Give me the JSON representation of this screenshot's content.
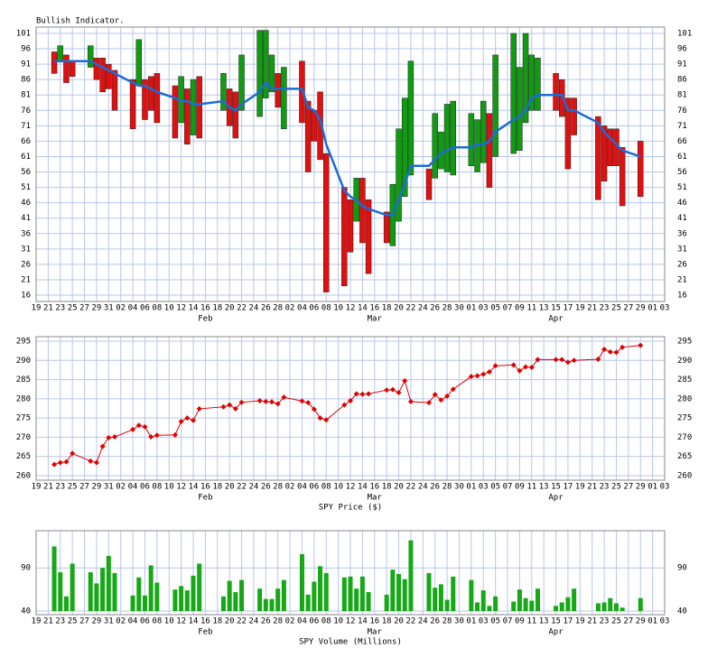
{
  "x_axis": {
    "xlim": [
      "01-19",
      "05-03"
    ],
    "xticks": [
      {
        "value": "01-19",
        "label": "19"
      },
      {
        "value": "01-21",
        "label": "21"
      },
      {
        "value": "01-23",
        "label": "23"
      },
      {
        "value": "01-25",
        "label": "25"
      },
      {
        "value": "01-27",
        "label": "27"
      },
      {
        "value": "01-29",
        "label": "29"
      },
      {
        "value": "01-31",
        "label": "31"
      },
      {
        "value": "02-02",
        "label": "02"
      },
      {
        "value": "02-04",
        "label": "04"
      },
      {
        "value": "02-06",
        "label": "06"
      },
      {
        "value": "02-08",
        "label": "08"
      },
      {
        "value": "02-10",
        "label": "10"
      },
      {
        "value": "02-12",
        "label": "12"
      },
      {
        "value": "02-14",
        "label": "14"
      },
      {
        "value": "02-16",
        "label": "16"
      },
      {
        "value": "02-18",
        "label": "18"
      },
      {
        "value": "02-20",
        "label": "20"
      },
      {
        "value": "02-22",
        "label": "22"
      },
      {
        "value": "02-24",
        "label": "24"
      },
      {
        "value": "02-26",
        "label": "26"
      },
      {
        "value": "02-28",
        "label": "28"
      },
      {
        "value": "03-02",
        "label": "02"
      },
      {
        "value": "03-04",
        "label": "04"
      },
      {
        "value": "03-06",
        "label": "06"
      },
      {
        "value": "03-08",
        "label": "08"
      },
      {
        "value": "03-10",
        "label": "10"
      },
      {
        "value": "03-12",
        "label": "12"
      },
      {
        "value": "03-14",
        "label": "14"
      },
      {
        "value": "03-16",
        "label": "16"
      },
      {
        "value": "03-18",
        "label": "18"
      },
      {
        "value": "03-20",
        "label": "20"
      },
      {
        "value": "03-22",
        "label": "22"
      },
      {
        "value": "03-24",
        "label": "24"
      },
      {
        "value": "03-26",
        "label": "26"
      },
      {
        "value": "03-28",
        "label": "28"
      },
      {
        "value": "03-30",
        "label": "30"
      },
      {
        "value": "04-01",
        "label": "01"
      },
      {
        "value": "04-03",
        "label": "03"
      },
      {
        "value": "04-05",
        "label": "05"
      },
      {
        "value": "04-07",
        "label": "07"
      },
      {
        "value": "04-09",
        "label": "09"
      },
      {
        "value": "04-11",
        "label": "11"
      },
      {
        "value": "04-13",
        "label": "13"
      },
      {
        "value": "04-15",
        "label": "15"
      },
      {
        "value": "04-17",
        "label": "17"
      },
      {
        "value": "04-19",
        "label": "19"
      },
      {
        "value": "04-21",
        "label": "21"
      },
      {
        "value": "04-23",
        "label": "23"
      },
      {
        "value": "04-25",
        "label": "25"
      },
      {
        "value": "04-27",
        "label": "27"
      },
      {
        "value": "04-29",
        "label": "29"
      },
      {
        "value": "05-01",
        "label": "01"
      },
      {
        "value": "05-03",
        "label": "03"
      }
    ],
    "month_labels": [
      {
        "value": "02-16",
        "label": "Feb"
      },
      {
        "value": "03-16",
        "label": "Mar"
      },
      {
        "value": "04-15",
        "label": "Apr"
      }
    ],
    "dates": [
      "01-22",
      "01-23",
      "01-24",
      "01-25",
      "01-28",
      "01-29",
      "01-30",
      "01-31",
      "02-01",
      "02-04",
      "02-05",
      "02-06",
      "02-07",
      "02-08",
      "02-11",
      "02-12",
      "02-13",
      "02-14",
      "02-15",
      "02-19",
      "02-20",
      "02-21",
      "02-22",
      "02-25",
      "02-26",
      "02-27",
      "02-28",
      "03-01",
      "03-04",
      "03-05",
      "03-06",
      "03-07",
      "03-08",
      "03-11",
      "03-12",
      "03-13",
      "03-14",
      "03-15",
      "03-18",
      "03-19",
      "03-20",
      "03-21",
      "03-22",
      "03-25",
      "03-26",
      "03-27",
      "03-28",
      "03-29",
      "04-01",
      "04-02",
      "04-03",
      "04-04",
      "04-05",
      "04-08",
      "04-09",
      "04-10",
      "04-11",
      "04-12",
      "04-15",
      "04-16",
      "04-17",
      "04-18",
      "04-22",
      "04-23",
      "04-24",
      "04-25",
      "04-26",
      "04-29"
    ]
  },
  "chart_data": [
    {
      "type": "range_bar",
      "title": "Bullish Indicator.",
      "grid": true,
      "ylim": [
        16,
        101
      ],
      "yticks": [
        16,
        21,
        26,
        31,
        36,
        41,
        46,
        51,
        56,
        61,
        66,
        71,
        76,
        81,
        86,
        91,
        96,
        101
      ],
      "up_color": "#109c10",
      "down_color": "#e01010",
      "open": [
        95,
        92,
        94,
        92,
        90,
        93,
        93,
        91,
        89,
        86,
        84,
        86,
        87,
        88,
        84,
        72,
        83,
        68,
        87,
        76,
        83,
        82,
        76,
        74,
        80,
        82,
        88,
        70,
        92,
        79,
        76,
        82,
        62,
        51,
        47,
        40,
        54,
        47,
        43,
        32,
        40,
        48,
        55,
        57,
        54,
        57,
        56,
        55,
        58,
        56,
        59,
        75,
        61,
        62,
        63,
        72,
        76,
        76,
        88,
        86,
        80,
        80,
        74,
        71,
        70,
        70,
        64,
        66
      ],
      "close": [
        88,
        97,
        85,
        87,
        97,
        86,
        82,
        83,
        76,
        70,
        99,
        73,
        76,
        72,
        67,
        87,
        65,
        86,
        67,
        88,
        71,
        67,
        94,
        102,
        102,
        94,
        77,
        90,
        72,
        56,
        66,
        60,
        17,
        19,
        30,
        54,
        33,
        23,
        33,
        52,
        70,
        80,
        92,
        47,
        75,
        69,
        78,
        79,
        75,
        73,
        79,
        51,
        94,
        101,
        90,
        101,
        94,
        93,
        76,
        74,
        57,
        68,
        47,
        53,
        58,
        58,
        45,
        48
      ],
      "series": [
        {
          "color": "#1c6cd4",
          "values": [
            92,
            92,
            92,
            92,
            92,
            91,
            90,
            89,
            88,
            85,
            84,
            84,
            83,
            82,
            80,
            79,
            79,
            78,
            78,
            79,
            77,
            76,
            78,
            82,
            85,
            83,
            83,
            83,
            83,
            77,
            76,
            73,
            65,
            50,
            48,
            47,
            45,
            44,
            42,
            42,
            47,
            52,
            58,
            58,
            60,
            62,
            63,
            64,
            64,
            65,
            65,
            66,
            69,
            73,
            74,
            76,
            80,
            81,
            81,
            81,
            76,
            76,
            72,
            69,
            67,
            65,
            63,
            61
          ]
        }
      ]
    },
    {
      "type": "line",
      "xlabel": "SPY Price ($)",
      "grid": true,
      "color": "#e00000",
      "ylim": [
        260,
        295
      ],
      "yticks": [
        260,
        265,
        270,
        275,
        280,
        285,
        290,
        295
      ],
      "values": [
        262.9,
        263.4,
        263.6,
        265.8,
        263.8,
        263.4,
        267.6,
        269.9,
        270.1,
        272,
        273.1,
        272.7,
        270.1,
        270.5,
        270.6,
        274.1,
        275,
        274.4,
        277.4,
        277.9,
        278.4,
        277.4,
        279.1,
        279.5,
        279.3,
        279.2,
        278.7,
        280.4,
        279.4,
        279,
        277.3,
        275,
        274.5,
        278.4,
        279.5,
        281.3,
        281.2,
        281.3,
        282.3,
        282.4,
        281.6,
        284.7,
        279.3,
        279,
        281.1,
        279.7,
        280.7,
        282.5,
        285.8,
        286,
        286.4,
        287,
        288.6,
        288.8,
        287.3,
        288.3,
        288.2,
        290.2,
        290.2,
        290.2,
        289.5,
        290,
        290.3,
        292.9,
        292.2,
        292.1,
        293.4,
        293.9
      ]
    },
    {
      "type": "bar",
      "xlabel": "SPY Volume (Millions)",
      "grid": true,
      "color": "#16a816",
      "ylim": [
        40,
        130
      ],
      "yticks": [
        40,
        90
      ],
      "values": [
        115,
        85,
        57,
        95,
        85,
        72,
        90,
        104,
        84,
        58,
        79,
        58,
        93,
        73,
        65,
        69,
        64,
        81,
        95,
        57,
        75,
        62,
        76,
        66,
        54,
        54,
        66,
        76,
        106,
        59,
        74,
        92,
        84,
        79,
        80,
        66,
        80,
        62,
        59,
        88,
        83,
        77,
        122,
        84,
        67,
        71,
        53,
        80,
        76,
        50,
        64,
        46,
        57,
        51,
        65,
        55,
        52,
        66,
        46,
        50,
        56,
        66,
        49,
        50,
        55,
        49,
        44,
        55
      ]
    }
  ]
}
